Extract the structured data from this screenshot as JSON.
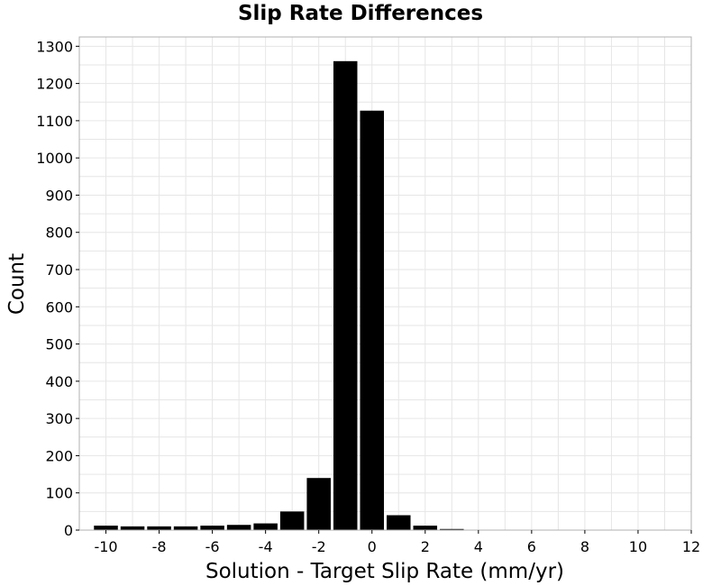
{
  "chart_data": {
    "type": "bar",
    "title": "Slip Rate Differences",
    "xlabel": "Solution - Target Slip Rate (mm/yr)",
    "ylabel": "Count",
    "xlim": [
      -11,
      12
    ],
    "ylim": [
      0,
      1325
    ],
    "xticks": [
      "-10",
      "-8",
      "-6",
      "-4",
      "-2",
      "0",
      "2",
      "4",
      "6",
      "8",
      "10",
      "12"
    ],
    "yticks": [
      "0",
      "100",
      "200",
      "300",
      "400",
      "500",
      "600",
      "700",
      "800",
      "900",
      "1000",
      "1100",
      "1200",
      "1300"
    ],
    "grid": true,
    "bin_width": 1,
    "bin_centers": [
      -10,
      -9,
      -8,
      -7,
      -6,
      -5,
      -4,
      -3,
      -2,
      -1,
      0,
      1,
      2,
      3
    ],
    "values": [
      12,
      10,
      10,
      10,
      12,
      14,
      18,
      50,
      140,
      1260,
      1127,
      40,
      12,
      3
    ],
    "bar_color": "#000000"
  }
}
